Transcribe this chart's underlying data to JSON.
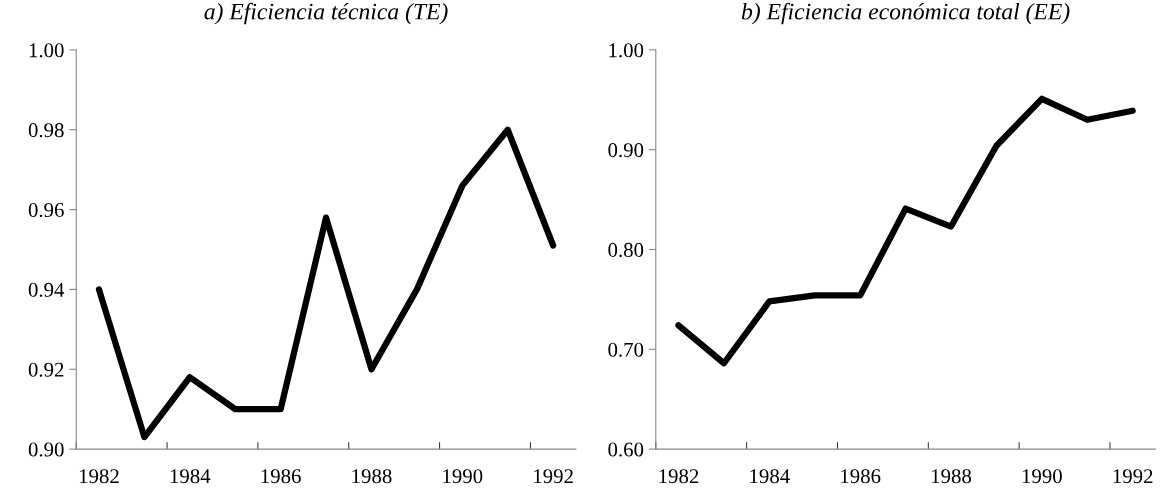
{
  "chart_data": [
    {
      "type": "line",
      "title": "a) Eficiencia técnica (TE)",
      "categories": [
        "1982",
        null,
        "1984",
        null,
        "1986",
        null,
        "1988",
        null,
        "1990",
        null,
        "1992"
      ],
      "series": [
        {
          "color": "#000000",
          "values": [
            0.94,
            0.903,
            0.918,
            0.91,
            0.91,
            0.958,
            0.92,
            0.94,
            0.966,
            0.98,
            0.951
          ]
        }
      ],
      "ylim": [
        0.9,
        1.0
      ],
      "yticks": [
        {
          "value": 0.9,
          "label": "0.90"
        },
        {
          "value": 0.92,
          "label": "0.92"
        },
        {
          "value": 0.94,
          "label": "0.94"
        },
        {
          "value": 0.96,
          "label": "0.96"
        },
        {
          "value": 0.98,
          "label": "0.98"
        },
        {
          "value": 1.0,
          "label": "1.00"
        }
      ],
      "grid": false,
      "legend": false,
      "marker": "none",
      "line_style": "solid"
    },
    {
      "type": "line",
      "title": "b) Eficiencia económica total (EE)",
      "categories": [
        "1982",
        null,
        "1984",
        null,
        "1986",
        null,
        "1988",
        null,
        "1990",
        null,
        "1992"
      ],
      "series": [
        {
          "color": "#000000",
          "values": [
            0.724,
            0.686,
            0.748,
            0.754,
            0.754,
            0.841,
            0.823,
            0.904,
            0.951,
            0.93,
            0.939
          ]
        }
      ],
      "ylim": [
        0.6,
        1.0
      ],
      "yticks": [
        {
          "value": 0.6,
          "label": "0.60"
        },
        {
          "value": 0.7,
          "label": "0.70"
        },
        {
          "value": 0.8,
          "label": "0.80"
        },
        {
          "value": 0.9,
          "label": "0.90"
        },
        {
          "value": 1.0,
          "label": "1.00"
        }
      ],
      "grid": false,
      "legend": false,
      "marker": "none",
      "line_style": "solid"
    }
  ]
}
